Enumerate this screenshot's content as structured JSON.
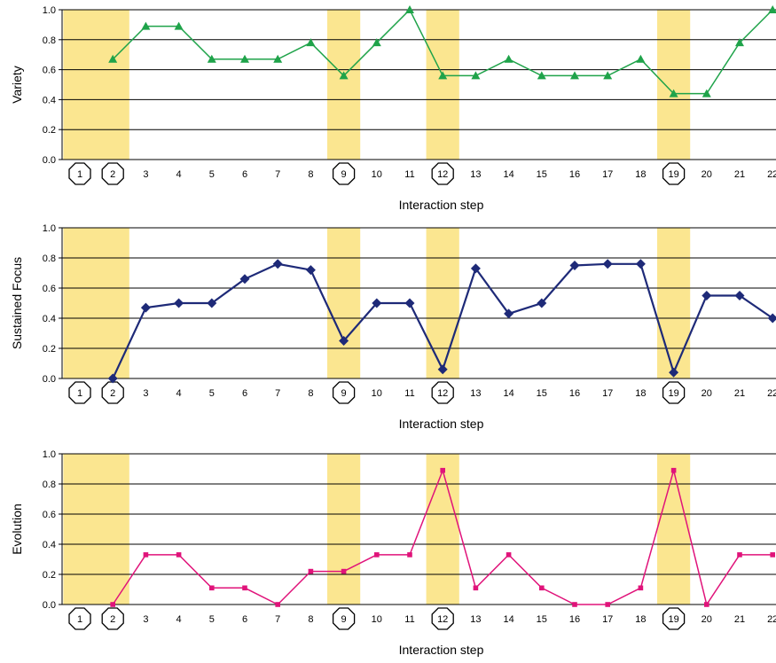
{
  "chart_data": [
    {
      "type": "line",
      "xlabel": "Interaction step",
      "ylabel": "Variety",
      "ylim": [
        0,
        1.0
      ],
      "y_ticks": [
        "0.0",
        "0.2",
        "0.4",
        "0.6",
        "0.8",
        "1.0"
      ],
      "grid": "horizontal",
      "categories": [
        "1",
        "2",
        "3",
        "4",
        "5",
        "6",
        "7",
        "8",
        "9",
        "10",
        "11",
        "12",
        "13",
        "14",
        "15",
        "16",
        "17",
        "18",
        "19",
        "20",
        "21",
        "22"
      ],
      "circled_categories": [
        "1",
        "2",
        "9",
        "12",
        "19"
      ],
      "highlighted_steps": [
        [
          1,
          2
        ],
        [
          9,
          9
        ],
        [
          12,
          12
        ],
        [
          19,
          19
        ]
      ],
      "highlight_color": "#FBE690",
      "series": [
        {
          "color": "#1FA34A",
          "marker": "triangle",
          "values": [
            null,
            0.67,
            0.89,
            0.89,
            0.67,
            0.67,
            0.67,
            0.78,
            0.56,
            0.78,
            1.0,
            0.56,
            0.56,
            0.67,
            0.56,
            0.56,
            0.56,
            0.67,
            0.44,
            0.44,
            0.78,
            1.0
          ]
        }
      ]
    },
    {
      "type": "line",
      "xlabel": "Interaction step",
      "ylabel": "Sustained Focus",
      "ylim": [
        0,
        1.0
      ],
      "y_ticks": [
        "0.0",
        "0.2",
        "0.4",
        "0.6",
        "0.8",
        "1.0"
      ],
      "grid": "horizontal",
      "categories": [
        "1",
        "2",
        "3",
        "4",
        "5",
        "6",
        "7",
        "8",
        "9",
        "10",
        "11",
        "12",
        "13",
        "14",
        "15",
        "16",
        "17",
        "18",
        "19",
        "20",
        "21",
        "22"
      ],
      "circled_categories": [
        "1",
        "2",
        "9",
        "12",
        "19"
      ],
      "highlighted_steps": [
        [
          1,
          2
        ],
        [
          9,
          9
        ],
        [
          12,
          12
        ],
        [
          19,
          19
        ]
      ],
      "highlight_color": "#FBE690",
      "series": [
        {
          "color": "#1E2A78",
          "marker": "diamond",
          "values": [
            null,
            0.0,
            0.47,
            0.5,
            0.5,
            0.66,
            0.76,
            0.72,
            0.25,
            0.5,
            0.5,
            0.06,
            0.73,
            0.43,
            0.5,
            0.75,
            0.76,
            0.76,
            0.04,
            0.55,
            0.55,
            0.4
          ]
        }
      ]
    },
    {
      "type": "line",
      "xlabel": "Interaction step",
      "ylabel": "Evolution",
      "ylim": [
        0,
        1.0
      ],
      "y_ticks": [
        "0.0",
        "0.2",
        "0.4",
        "0.6",
        "0.8",
        "1.0"
      ],
      "grid": "horizontal",
      "categories": [
        "1",
        "2",
        "3",
        "4",
        "5",
        "6",
        "7",
        "8",
        "9",
        "10",
        "11",
        "12",
        "13",
        "14",
        "15",
        "16",
        "17",
        "18",
        "19",
        "20",
        "21",
        "22"
      ],
      "circled_categories": [
        "1",
        "2",
        "9",
        "12",
        "19"
      ],
      "highlighted_steps": [
        [
          1,
          2
        ],
        [
          9,
          9
        ],
        [
          12,
          12
        ],
        [
          19,
          19
        ]
      ],
      "highlight_color": "#FBE690",
      "series": [
        {
          "color": "#E0137A",
          "marker": "square",
          "values": [
            null,
            0.0,
            0.33,
            0.33,
            0.11,
            0.11,
            0.0,
            0.22,
            0.22,
            0.33,
            0.33,
            0.89,
            0.11,
            0.33,
            0.11,
            0.0,
            0.0,
            0.11,
            0.89,
            0.0,
            0.33,
            0.33
          ]
        }
      ]
    }
  ]
}
